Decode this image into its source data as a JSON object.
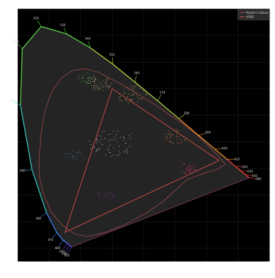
{
  "chart_data": {
    "type": "scatter",
    "title": "",
    "xlabel": "",
    "ylabel": "",
    "xlim": [
      0.0,
      0.8
    ],
    "ylim": [
      -0.05,
      0.9
    ],
    "grid": true,
    "legend_position": "top-right",
    "legend": [
      {
        "label": "Pointer's Gamut",
        "color": "#b35050"
      },
      {
        "label": "sRGB",
        "color": "#e0504a"
      }
    ],
    "spectral_locus": {
      "color": "#3bd0c8",
      "wavelength_labels": [
        {
          "nm": "420",
          "x": 0.171,
          "y": 0.005
        },
        {
          "nm": "440",
          "x": 0.164,
          "y": 0.011
        },
        {
          "nm": "450",
          "x": 0.157,
          "y": 0.018
        },
        {
          "nm": "460",
          "x": 0.144,
          "y": 0.03
        },
        {
          "nm": "470",
          "x": 0.124,
          "y": 0.058
        },
        {
          "nm": "480",
          "x": 0.091,
          "y": 0.133
        },
        {
          "nm": "490",
          "x": 0.045,
          "y": 0.295
        },
        {
          "nm": "500",
          "x": 0.008,
          "y": 0.538
        },
        {
          "nm": "510",
          "x": 0.014,
          "y": 0.75
        },
        {
          "nm": "520",
          "x": 0.074,
          "y": 0.834
        },
        {
          "nm": "530",
          "x": 0.155,
          "y": 0.806
        },
        {
          "nm": "540",
          "x": 0.23,
          "y": 0.754
        },
        {
          "nm": "550",
          "x": 0.302,
          "y": 0.692
        },
        {
          "nm": "560",
          "x": 0.373,
          "y": 0.624
        },
        {
          "nm": "570",
          "x": 0.444,
          "y": 0.555
        },
        {
          "nm": "580",
          "x": 0.512,
          "y": 0.487
        },
        {
          "nm": "590",
          "x": 0.575,
          "y": 0.424
        },
        {
          "nm": "600",
          "x": 0.627,
          "y": 0.372
        },
        {
          "nm": "610",
          "x": 0.666,
          "y": 0.334
        },
        {
          "nm": "620",
          "x": 0.691,
          "y": 0.308
        },
        {
          "nm": "630",
          "x": 0.708,
          "y": 0.292
        },
        {
          "nm": "645",
          "x": 0.723,
          "y": 0.277
        },
        {
          "nm": "680",
          "x": 0.735,
          "y": 0.265
        }
      ]
    },
    "srgb_triangle": {
      "color": "#e0504a",
      "points": [
        [
          0.64,
          0.33
        ],
        [
          0.3,
          0.6
        ],
        [
          0.15,
          0.06
        ]
      ]
    },
    "pointers_gamut": {
      "color": "#b35050",
      "points": [
        [
          0.508,
          0.226
        ],
        [
          0.538,
          0.258
        ],
        [
          0.588,
          0.28
        ],
        [
          0.637,
          0.298
        ],
        [
          0.659,
          0.316
        ],
        [
          0.634,
          0.351
        ],
        [
          0.57,
          0.425
        ],
        [
          0.519,
          0.473
        ],
        [
          0.482,
          0.502
        ],
        [
          0.444,
          0.534
        ],
        [
          0.393,
          0.571
        ],
        [
          0.326,
          0.619
        ],
        [
          0.255,
          0.662
        ],
        [
          0.215,
          0.675
        ],
        [
          0.175,
          0.669
        ],
        [
          0.139,
          0.641
        ],
        [
          0.106,
          0.587
        ],
        [
          0.085,
          0.512
        ],
        [
          0.073,
          0.426
        ],
        [
          0.068,
          0.34
        ],
        [
          0.068,
          0.271
        ],
        [
          0.082,
          0.202
        ],
        [
          0.105,
          0.138
        ],
        [
          0.14,
          0.088
        ],
        [
          0.18,
          0.054
        ],
        [
          0.223,
          0.044
        ],
        [
          0.276,
          0.059
        ],
        [
          0.339,
          0.088
        ],
        [
          0.406,
          0.131
        ],
        [
          0.463,
          0.177
        ]
      ]
    }
  }
}
